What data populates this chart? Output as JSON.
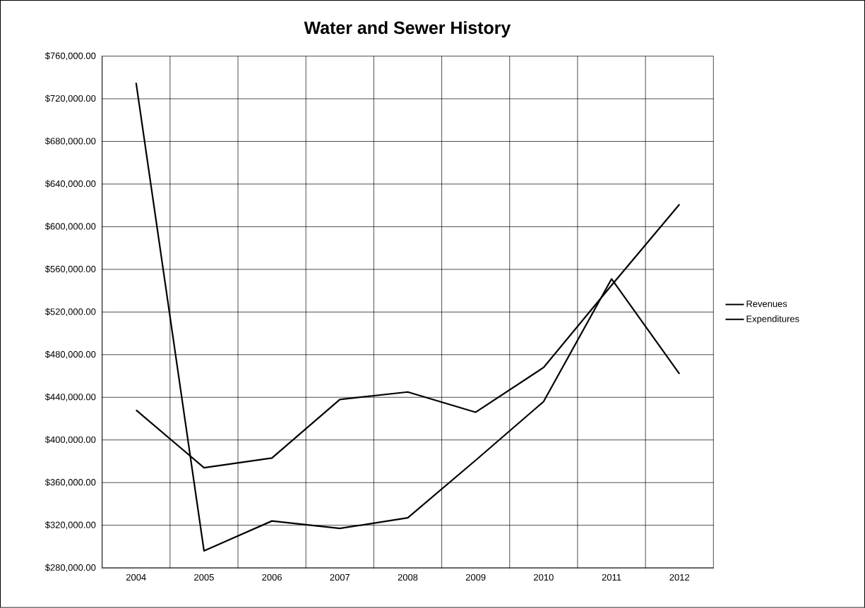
{
  "chart_data": {
    "type": "line",
    "title": "Water and Sewer History",
    "categories": [
      "2004",
      "2005",
      "2006",
      "2007",
      "2008",
      "2009",
      "2010",
      "2011",
      "2012"
    ],
    "series": [
      {
        "name": "Revenues",
        "color": "#000000",
        "values": [
          428000,
          374000,
          383000,
          438000,
          445000,
          426000,
          468000,
          545000,
          621000
        ]
      },
      {
        "name": "Expenditures",
        "color": "#000000",
        "values": [
          735000,
          296000,
          324000,
          317000,
          327000,
          381000,
          436000,
          551000,
          462000
        ]
      }
    ],
    "ylim": [
      280000,
      760000
    ],
    "yticks": [
      {
        "value": 280000,
        "label": "$280,000.00"
      },
      {
        "value": 320000,
        "label": "$320,000.00"
      },
      {
        "value": 360000,
        "label": "$360,000.00"
      },
      {
        "value": 400000,
        "label": "$400,000.00"
      },
      {
        "value": 440000,
        "label": "$440,000.00"
      },
      {
        "value": 480000,
        "label": "$480,000.00"
      },
      {
        "value": 520000,
        "label": "$520,000.00"
      },
      {
        "value": 560000,
        "label": "$560,000.00"
      },
      {
        "value": 600000,
        "label": "$600,000.00"
      },
      {
        "value": 640000,
        "label": "$640,000.00"
      },
      {
        "value": 680000,
        "label": "$680,000.00"
      },
      {
        "value": 720000,
        "label": "$720,000.00"
      },
      {
        "value": 760000,
        "label": "$760,000.00"
      }
    ],
    "grid": true,
    "legend": "right",
    "marker": "none",
    "line_style": "solid"
  }
}
